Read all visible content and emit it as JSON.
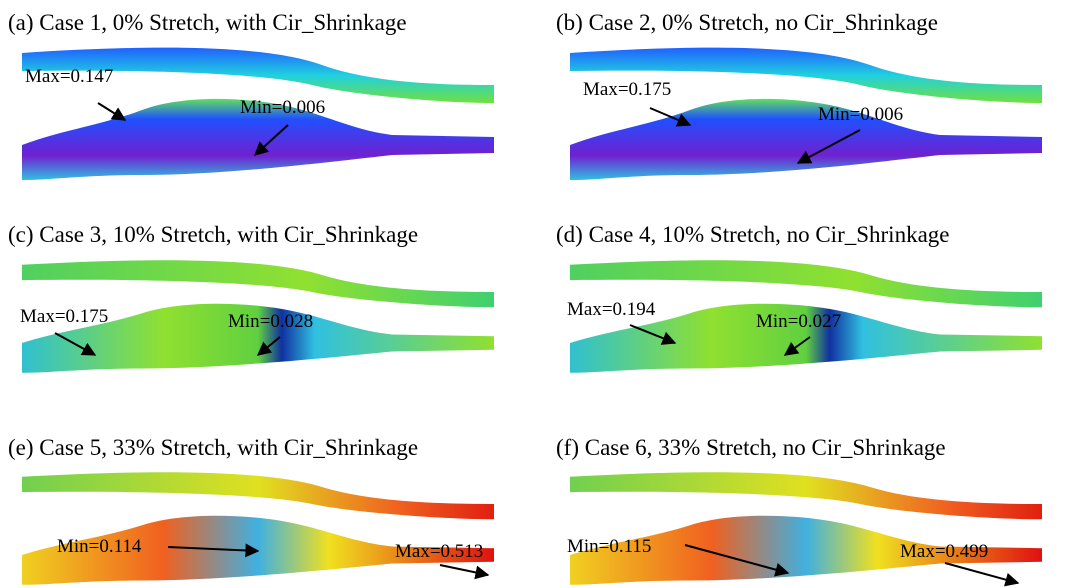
{
  "panels": [
    {
      "caption": "(a) Case 1, 0% Stretch, with Cir_Shrinkage",
      "max_label": "Max=0.147",
      "min_label": "Min=0.006"
    },
    {
      "caption": "(b) Case 2, 0% Stretch, no Cir_Shrinkage",
      "max_label": "Max=0.175",
      "min_label": "Min=0.006"
    },
    {
      "caption": "(c) Case 3, 10% Stretch, with Cir_Shrinkage",
      "max_label": "Max=0.175",
      "min_label": "Min=0.028"
    },
    {
      "caption": "(d) Case 4, 10% Stretch, no Cir_Shrinkage",
      "max_label": "Max=0.194",
      "min_label": "Min=0.027"
    },
    {
      "caption": "(e) Case 5, 33% Stretch, with Cir_Shrinkage",
      "max_label": "Max=0.513",
      "min_label": "Min=0.114"
    },
    {
      "caption": "(f) Case 6, 33% Stretch, no Cir_Shrinkage",
      "max_label": "Max=0.499",
      "min_label": "Min=0.115"
    }
  ]
}
